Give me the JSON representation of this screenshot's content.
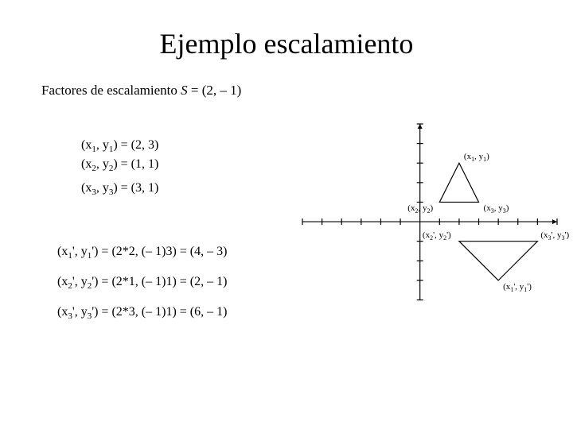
{
  "title": "Ejemplo escalamiento",
  "factors_prefix": "Factores de escalamiento ",
  "factors_S": "S",
  "factors_suffix": " = (2, – 1)",
  "equations": {
    "p1": "(x1, y1) = (2, 3)",
    "p2": "(x2, y2) = (1, 1)",
    "p3": "(x3, y3) = (3, 1)",
    "q1": "(x1', y1') = (2*2, (– 1)3) = (4, – 3)",
    "q2": "(x2', y2') = (2*1, (– 1)1) = (2, – 1)",
    "q3": "(x3', y3') = (2*3, (– 1)1) = (6, – 1)"
  },
  "graph": {
    "x_range": [
      -6,
      7
    ],
    "y_range": [
      -4,
      5
    ],
    "tick_len": 4,
    "axis_color": "#000000",
    "stroke_width": 1.2,
    "triangle_original": {
      "points": [
        [
          2,
          3
        ],
        [
          1,
          1
        ],
        [
          3,
          1
        ]
      ],
      "stroke": "#000000",
      "fill": "none"
    },
    "triangle_scaled": {
      "points": [
        [
          4,
          -3
        ],
        [
          2,
          -1
        ],
        [
          6,
          -1
        ]
      ],
      "stroke": "#000000",
      "fill": "none"
    },
    "labels": {
      "l1": "(x1, y1)",
      "l2": "(x2, y2)",
      "l3": "(x3, y3)",
      "m1": "(x1', y1')",
      "m2": "(x2', y2')",
      "m3": "(x3', y3')"
    }
  }
}
